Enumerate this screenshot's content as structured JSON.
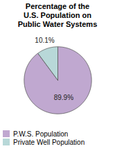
{
  "chart_data": {
    "type": "pie",
    "title": "Percentage of the\nU.S. Population on\nPublic Water Systems",
    "categories": [
      "P.W.S. Population",
      "Private Well Population"
    ],
    "values": [
      89.9,
      10.1
    ],
    "value_labels": [
      "89.9%",
      "10.1%"
    ],
    "data_labels": true,
    "colors": [
      "#c0a8d0",
      "#b8d8d8"
    ],
    "legend": "lower left"
  }
}
